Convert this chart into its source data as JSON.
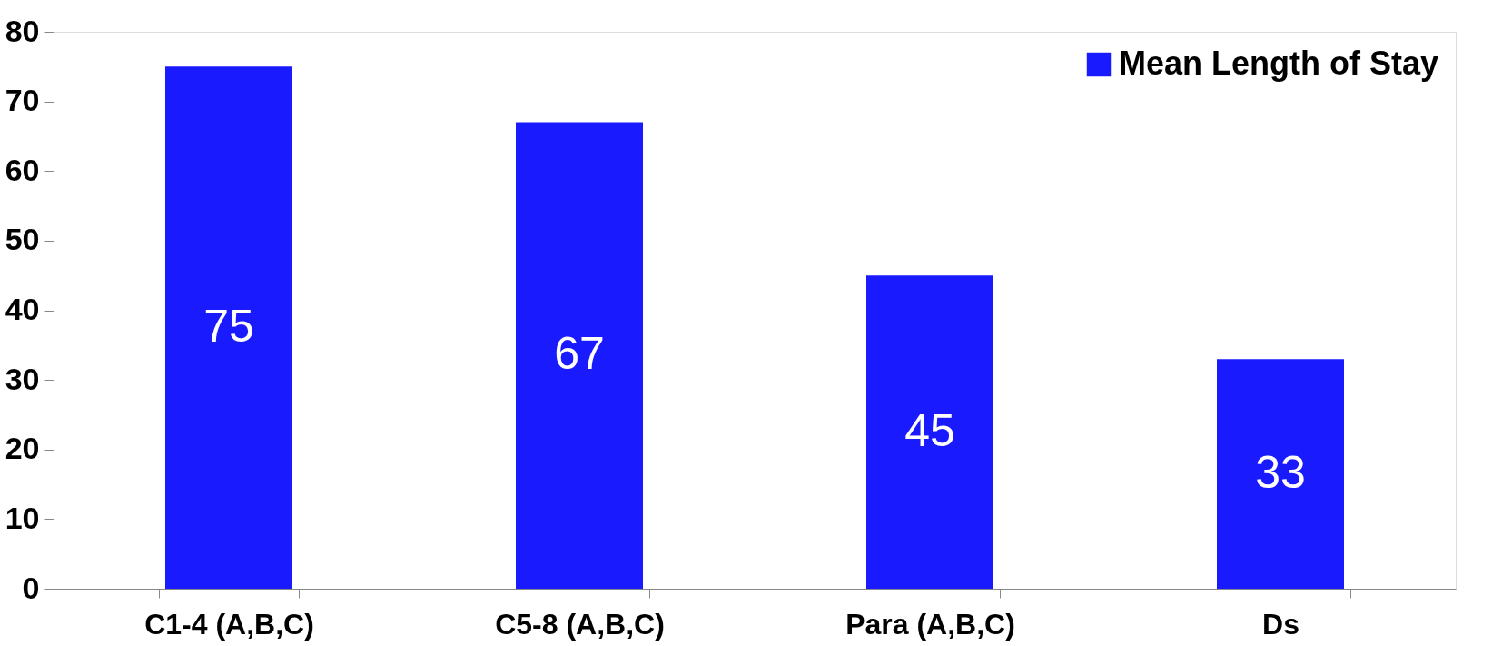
{
  "chart_data": {
    "type": "bar",
    "categories": [
      "C1-4 (A,B,C)",
      "C5-8 (A,B,C)",
      "Para (A,B,C)",
      "Ds"
    ],
    "series": [
      {
        "name": "Mean Length of Stay",
        "color": "#1a1aff",
        "values": [
          75,
          67,
          45,
          33
        ]
      }
    ],
    "ylim": [
      0,
      80
    ],
    "yticks": [
      0,
      10,
      20,
      30,
      40,
      50,
      60,
      70,
      80
    ],
    "data_labels": true,
    "legend": "top right",
    "grid": false
  }
}
